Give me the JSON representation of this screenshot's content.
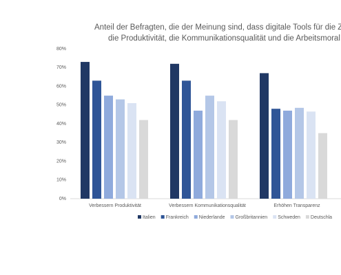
{
  "chart_data": {
    "type": "bar",
    "title": [
      "Anteil der Befragten, die der Meinung sind, dass digitale Tools für die Zu",
      "die Produktivität, die Kommunikationsqualität und die Arbeitsmoral v"
    ],
    "categories": [
      "Verbessern Produktivität",
      "Verbessern Kommunikationsqualität",
      "Erhöhen Transparenz"
    ],
    "series": [
      {
        "name": "Italien",
        "color": "#203864",
        "values": [
          73,
          72,
          67
        ]
      },
      {
        "name": "Frankreich",
        "color": "#2f5597",
        "values": [
          63,
          63,
          48
        ]
      },
      {
        "name": "Niederlande",
        "color": "#8faadc",
        "values": [
          55,
          47,
          47
        ]
      },
      {
        "name": "Großbritannien",
        "color": "#b4c7e7",
        "values": [
          53,
          55,
          48.5
        ]
      },
      {
        "name": "Schweden",
        "color": "#dae3f3",
        "values": [
          51,
          52,
          46.5
        ]
      },
      {
        "name": "Deutschla",
        "color": "#d9d9d9",
        "values": [
          42,
          42,
          35
        ]
      }
    ],
    "ylim": [
      0,
      80
    ],
    "yticks": [
      {
        "value": 0,
        "label": "0%"
      },
      {
        "value": 10,
        "label": "10%"
      },
      {
        "value": 20,
        "label": "20%"
      },
      {
        "value": 30,
        "label": "30%"
      },
      {
        "value": 40,
        "label": "40%"
      },
      {
        "value": 50,
        "label": "50%"
      },
      {
        "value": 60,
        "label": "60%"
      },
      {
        "value": 70,
        "label": "70%"
      },
      {
        "value": 80,
        "label": "80%"
      }
    ],
    "legend": "bottom"
  }
}
